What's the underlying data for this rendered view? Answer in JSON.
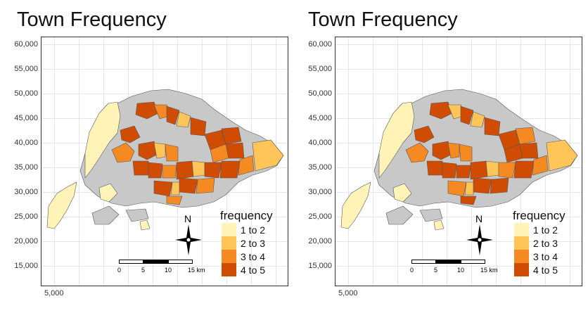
{
  "panels": [
    {
      "title": "Town Frequency",
      "y_ticks": [
        "60,000",
        "55,000",
        "50,000",
        "45,000",
        "40,000",
        "35,000",
        "30,000",
        "25,000",
        "20,000",
        "15,000"
      ],
      "x_ticks": [
        "5,000"
      ],
      "legend": {
        "title": "frequency",
        "items": [
          {
            "label": "1 to 2",
            "color": "#FFF3B8"
          },
          {
            "label": "2 to 3",
            "color": "#FFC558"
          },
          {
            "label": "3 to 4",
            "color": "#F68A22"
          },
          {
            "label": "4 to 5",
            "color": "#CF4C02"
          }
        ]
      },
      "scalebar": {
        "labels": [
          "0",
          "5",
          "10",
          "15 km"
        ]
      },
      "north_arrow": {
        "label": "N"
      }
    },
    {
      "title": "Town Frequency",
      "y_ticks": [
        "60,000",
        "55,000",
        "50,000",
        "45,000",
        "40,000",
        "35,000",
        "30,000",
        "25,000",
        "20,000",
        "15,000"
      ],
      "x_ticks": [
        "5,000"
      ],
      "legend": {
        "title": "frequency",
        "items": [
          {
            "label": "1 to 2",
            "color": "#FFF3B8"
          },
          {
            "label": "2 to 3",
            "color": "#FFC558"
          },
          {
            "label": "3 to 4",
            "color": "#F68A22"
          },
          {
            "label": "4 to 5",
            "color": "#CF4C02"
          }
        ]
      },
      "scalebar": {
        "labels": [
          "0",
          "5",
          "10",
          "15 km"
        ]
      },
      "north_arrow": {
        "label": "N"
      }
    }
  ],
  "colors": {
    "no_data": "#C8C8C8",
    "boundary": "#555555"
  }
}
